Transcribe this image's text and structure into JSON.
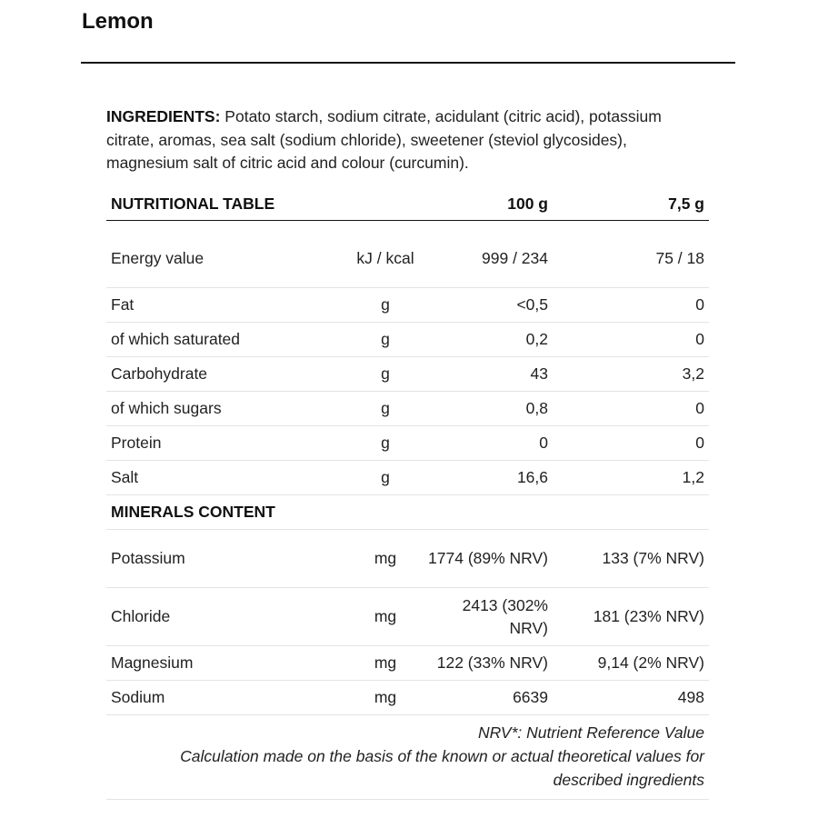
{
  "title": "Lemon",
  "ingredients": {
    "label": "INGREDIENTS:",
    "text": " Potato starch, sodium citrate, acidulant (citric acid), potassium citrate, aromas, sea salt (sodium chloride), sweetener (steviol glycosides), magnesium salt of citric acid and colour (curcumin)."
  },
  "table": {
    "header": {
      "label": "NUTRITIONAL TABLE",
      "col_100g": "100 g",
      "col_serving": "7,5 g"
    },
    "rows": [
      {
        "name": "Energy value",
        "unit": "kJ / kcal",
        "per100": "999 / 234",
        "serving": "75 / 18"
      },
      {
        "name": "Fat",
        "unit": "g",
        "per100": "<0,5",
        "serving": "0"
      },
      {
        "name": "of which saturated",
        "unit": "g",
        "per100": "0,2",
        "serving": "0"
      },
      {
        "name": "Carbohydrate",
        "unit": "g",
        "per100": "43",
        "serving": "3,2"
      },
      {
        "name": "of which sugars",
        "unit": "g",
        "per100": "0,8",
        "serving": "0"
      },
      {
        "name": "Protein",
        "unit": "g",
        "per100": "0",
        "serving": "0"
      },
      {
        "name": "Salt",
        "unit": "g",
        "per100": "16,6",
        "serving": "1,2"
      }
    ],
    "minerals_header": "MINERALS CONTENT",
    "minerals": [
      {
        "name": "Potassium",
        "unit": "mg",
        "per100": "1774 (89% NRV)",
        "serving": "133 (7% NRV)"
      },
      {
        "name": "Chloride",
        "unit": "mg",
        "per100": "2413 (302% NRV)",
        "serving": "181 (23% NRV)"
      },
      {
        "name": "Magnesium",
        "unit": "mg",
        "per100": "122 (33% NRV)",
        "serving": "9,14 (2% NRV)"
      },
      {
        "name": "Sodium",
        "unit": "mg",
        "per100": "6639",
        "serving": "498"
      }
    ],
    "footnote_nrv": "NRV*: Nutrient Reference Value",
    "footnote_calc": "Calculation made on the basis of the known or actual theoretical values for described ingredients"
  }
}
